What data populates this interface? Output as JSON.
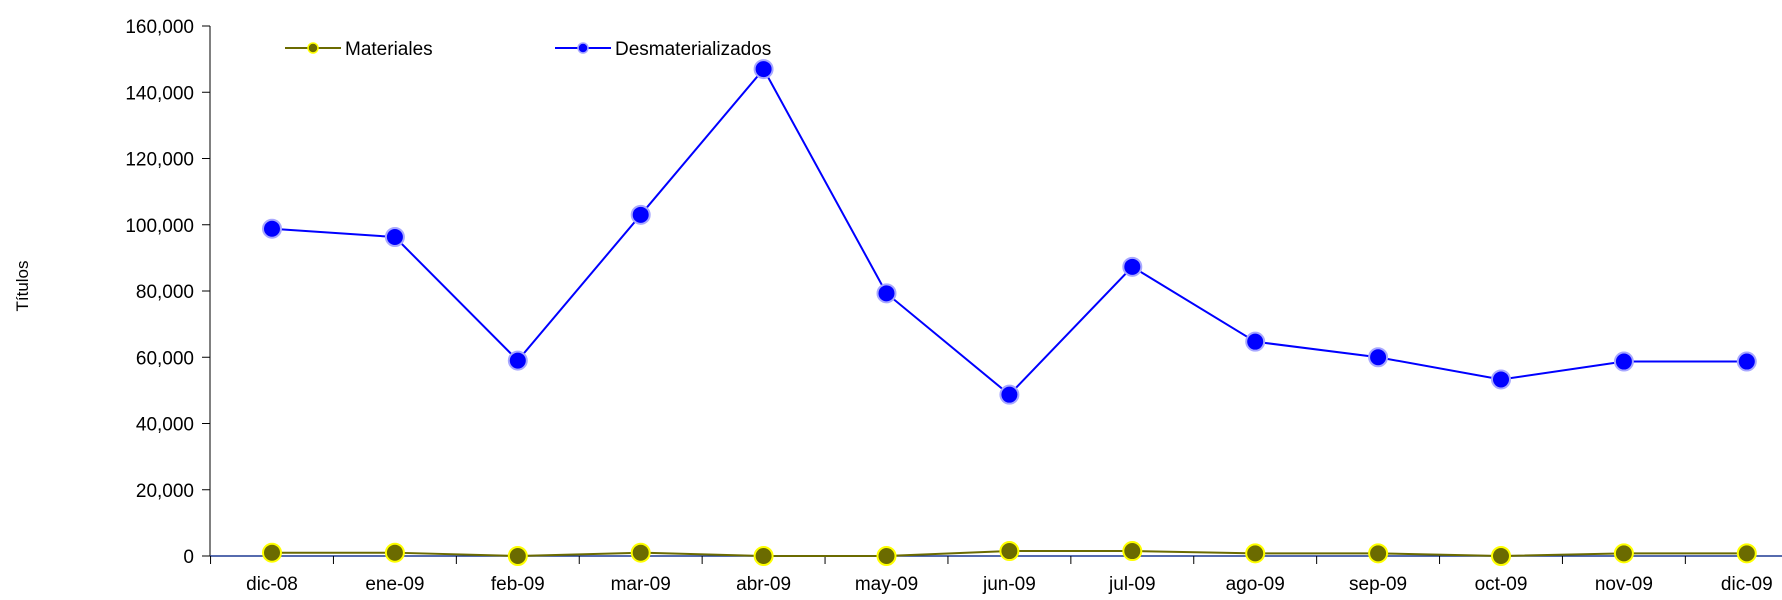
{
  "chart_data": {
    "type": "line",
    "title": "",
    "xlabel": "",
    "ylabel": "Títulos",
    "categories": [
      "dic-08",
      "ene-09",
      "feb-09",
      "mar-09",
      "abr-09",
      "may-09",
      "jun-09",
      "jul-09",
      "ago-09",
      "sep-09",
      "oct-09",
      "nov-09",
      "dic-09"
    ],
    "ylim": [
      0,
      160000
    ],
    "yticks": [
      "0",
      "20,000",
      "40,000",
      "60,000",
      "80,000",
      "100,000",
      "120,000",
      "140,000",
      "160,000"
    ],
    "ytick_values": [
      0,
      20000,
      40000,
      60000,
      80000,
      100000,
      120000,
      140000,
      160000
    ],
    "grid": false,
    "legend_position": "top-left",
    "series": [
      {
        "name": "Materiales",
        "values": [
          1000,
          1000,
          0,
          1000,
          0,
          0,
          1500,
          1500,
          800,
          800,
          0,
          800,
          800
        ],
        "line_color": "#6b6b00",
        "marker_fill": "#6b6b00",
        "marker_stroke": "#ffff00"
      },
      {
        "name": "Desmaterializados",
        "values": [
          98800,
          96300,
          59000,
          103000,
          147000,
          79300,
          48700,
          87300,
          64700,
          60000,
          53300,
          58700,
          58700
        ],
        "line_color": "#0000ff",
        "marker_fill": "#0000ff",
        "marker_stroke": "#a8a8ff"
      }
    ]
  }
}
